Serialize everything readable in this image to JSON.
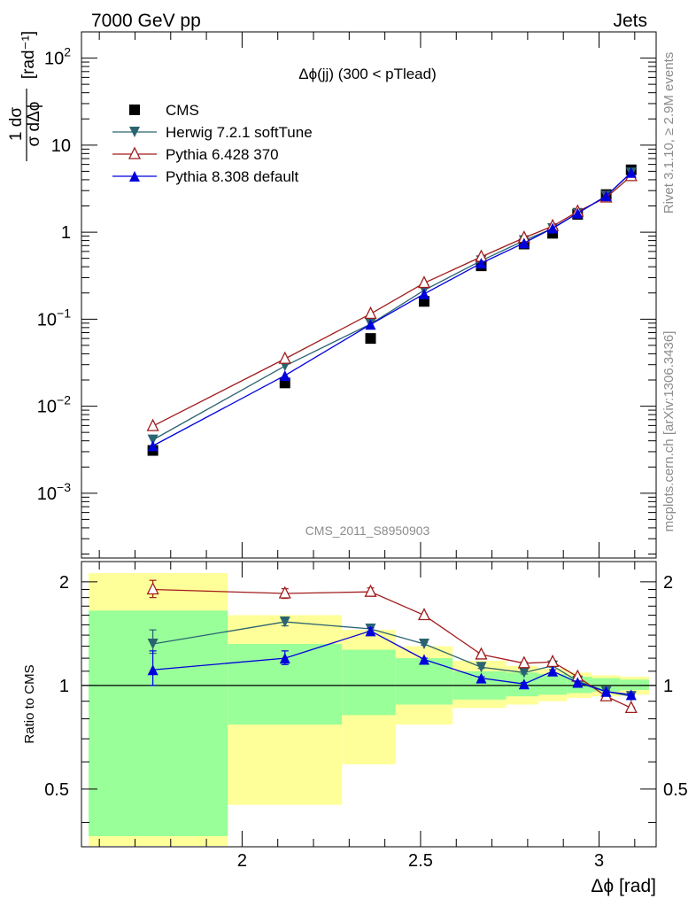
{
  "header": {
    "left": "7000 GeV pp",
    "right": "Jets"
  },
  "side": {
    "rivet": "Rivet 3.1.10, ≥ 2.9M events",
    "source": "mcplots.cern.ch [arXiv:1306.3436]"
  },
  "watermark": "CMS_2011_S8950903",
  "colors": {
    "cms": "#000000",
    "herwig": "#2a6470",
    "pythia6": "#a01c1c",
    "pythia8": "#0000dd",
    "band_inner": "#99ff99",
    "band_outer": "#ffff99"
  },
  "chart_data": [
    {
      "type": "line",
      "title": "Δϕ(jj) (300 < pTlead)",
      "ylabel_main": "[rad⁻¹]",
      "ylabel_frac_num": "1 dσ",
      "ylabel_frac_den": "σ dΔϕ",
      "log_y": true,
      "xlim": [
        1.55,
        3.16
      ],
      "ylim": [
        0.00018,
        200
      ],
      "y_ticks": [
        {
          "v": 0.001,
          "base": "10",
          "exp": "−3"
        },
        {
          "v": 0.01,
          "base": "10",
          "exp": "−2"
        },
        {
          "v": 0.1,
          "base": "10",
          "exp": "−1"
        },
        {
          "v": 1,
          "base": "1",
          "exp": ""
        },
        {
          "v": 10,
          "base": "10",
          "exp": ""
        },
        {
          "v": 100,
          "base": "10",
          "exp": "2"
        }
      ],
      "legend": [
        "CMS",
        "Herwig 7.2.1 softTune",
        "Pythia 6.428 370",
        "Pythia 8.308 default"
      ],
      "legend_position": "top-left",
      "x": [
        1.75,
        2.12,
        2.36,
        2.51,
        2.67,
        2.79,
        2.87,
        2.94,
        3.02,
        3.09
      ],
      "series": [
        {
          "name": "CMS",
          "marker": "square",
          "values": [
            0.0031,
            0.0185,
            0.06,
            0.16,
            0.41,
            0.73,
            0.97,
            1.6,
            2.7,
            5.2
          ]
        },
        {
          "name": "Herwig 7.2.1 softTune",
          "marker": "triangle-down",
          "values": [
            0.0041,
            0.029,
            0.088,
            0.215,
            0.47,
            0.8,
            1.1,
            1.65,
            2.6,
            4.8
          ]
        },
        {
          "name": "Pythia 6.428 370",
          "marker": "triangle-open",
          "values": [
            0.0059,
            0.035,
            0.115,
            0.26,
            0.52,
            0.86,
            1.17,
            1.72,
            2.5,
            4.4
          ]
        },
        {
          "name": "Pythia 8.308 default",
          "marker": "triangle-up",
          "values": [
            0.0035,
            0.0225,
            0.087,
            0.195,
            0.44,
            0.75,
            1.11,
            1.65,
            2.6,
            4.85
          ]
        }
      ]
    },
    {
      "type": "line",
      "ylabel": "Ratio to CMS",
      "xlabel": "Δϕ [rad]",
      "xlim": [
        1.55,
        3.16
      ],
      "ylim": [
        0.34,
        2.29
      ],
      "log_y": true,
      "x_ticks": [
        2,
        2.5,
        3
      ],
      "x_tick_labels": [
        "2",
        "2.5",
        "3"
      ],
      "y_ticks": [
        0.5,
        1,
        2
      ],
      "y_tick_labels": [
        "0.5",
        "1",
        "2"
      ],
      "bins": [
        {
          "lo": 1.57,
          "hi": 1.96,
          "inner": [
            0.365,
            1.65
          ],
          "outer": [
            0.34,
            2.12
          ]
        },
        {
          "lo": 1.96,
          "hi": 2.28,
          "inner": [
            0.77,
            1.32
          ],
          "outer": [
            0.45,
            1.6
          ]
        },
        {
          "lo": 2.28,
          "hi": 2.43,
          "inner": [
            0.82,
            1.27
          ],
          "outer": [
            0.59,
            1.45
          ]
        },
        {
          "lo": 2.43,
          "hi": 2.59,
          "inner": [
            0.88,
            1.2
          ],
          "outer": [
            0.77,
            1.3
          ]
        },
        {
          "lo": 2.59,
          "hi": 2.74,
          "inner": [
            0.91,
            1.1
          ],
          "outer": [
            0.86,
            1.18
          ]
        },
        {
          "lo": 2.74,
          "hi": 2.83,
          "inner": [
            0.93,
            1.09
          ],
          "outer": [
            0.88,
            1.14
          ]
        },
        {
          "lo": 2.83,
          "hi": 2.91,
          "inner": [
            0.94,
            1.08
          ],
          "outer": [
            0.9,
            1.12
          ]
        },
        {
          "lo": 2.91,
          "hi": 2.98,
          "inner": [
            0.95,
            1.06
          ],
          "outer": [
            0.92,
            1.09
          ]
        },
        {
          "lo": 2.98,
          "hi": 3.06,
          "inner": [
            0.96,
            1.05
          ],
          "outer": [
            0.93,
            1.07
          ]
        },
        {
          "lo": 3.06,
          "hi": 3.14,
          "inner": [
            0.97,
            1.04
          ],
          "outer": [
            0.94,
            1.06
          ]
        }
      ],
      "x": [
        1.75,
        2.12,
        2.36,
        2.51,
        2.67,
        2.79,
        2.87,
        2.94,
        3.02,
        3.09
      ],
      "series": [
        {
          "name": "Herwig 7.2.1 softTune",
          "marker": "triangle-down",
          "values": [
            1.32,
            1.53,
            1.46,
            1.32,
            1.13,
            1.09,
            1.14,
            1.03,
            0.96,
            0.93
          ],
          "err": [
            [
              1.24,
              1.45
            ],
            [
              1.49,
              1.58
            ],
            [
              1.44,
              1.48
            ],
            [
              1.31,
              1.33
            ],
            [
              1.12,
              1.14
            ],
            [
              1.08,
              1.1
            ],
            [
              1.13,
              1.15
            ],
            [
              1.02,
              1.04
            ],
            [
              0.955,
              0.965
            ],
            [
              0.925,
              0.935
            ]
          ]
        },
        {
          "name": "Pythia 6.428 370",
          "marker": "triangle-open",
          "values": [
            1.9,
            1.85,
            1.87,
            1.6,
            1.23,
            1.16,
            1.17,
            1.06,
            0.93,
            0.86
          ],
          "err": [
            [
              1.8,
              2.02
            ],
            [
              1.79,
              1.91
            ],
            [
              1.83,
              1.92
            ],
            [
              1.59,
              1.61
            ],
            [
              1.22,
              1.24
            ],
            [
              1.15,
              1.17
            ],
            [
              1.16,
              1.18
            ],
            [
              1.05,
              1.07
            ],
            [
              0.92,
              0.94
            ],
            [
              0.855,
              0.865
            ]
          ]
        },
        {
          "name": "Pythia 8.308 default",
          "marker": "triangle-up",
          "values": [
            1.11,
            1.2,
            1.44,
            1.19,
            1.05,
            1.01,
            1.1,
            1.02,
            0.96,
            0.94
          ],
          "err": [
            [
              1.0,
              1.26
            ],
            [
              1.15,
              1.26
            ],
            [
              1.41,
              1.47
            ],
            [
              1.18,
              1.2
            ],
            [
              1.04,
              1.06
            ],
            [
              1.0,
              1.02
            ],
            [
              1.09,
              1.11
            ],
            [
              1.01,
              1.03
            ],
            [
              0.955,
              0.965
            ],
            [
              0.935,
              0.945
            ]
          ]
        }
      ]
    }
  ]
}
